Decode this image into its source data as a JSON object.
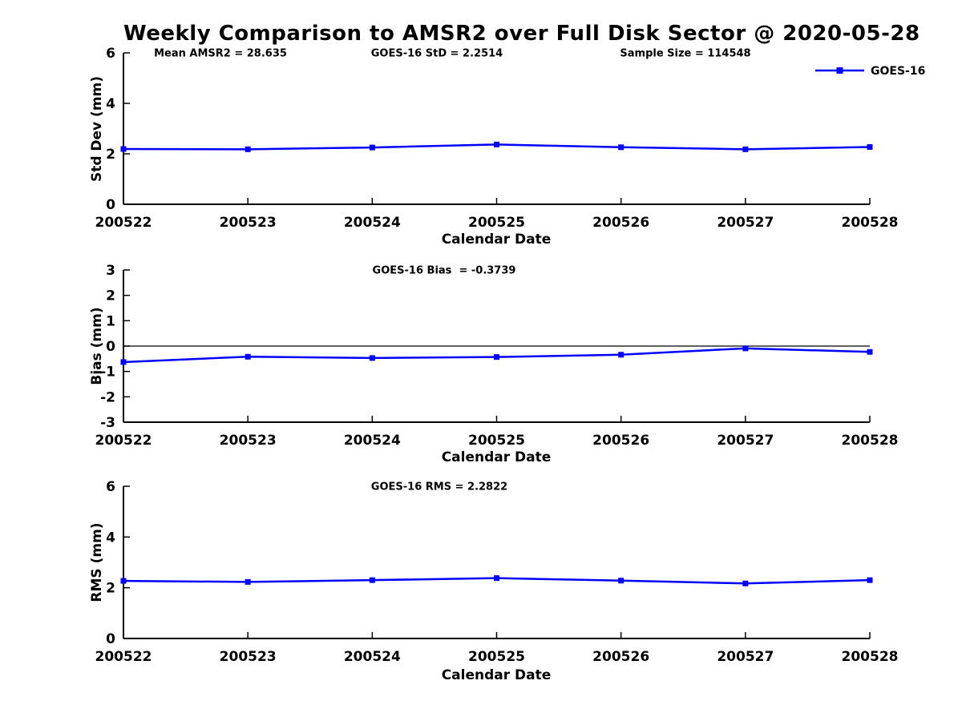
{
  "figure": {
    "title": "Weekly Comparison to AMSR2 over Full Disk Sector @ 2020-05-28"
  },
  "legend": {
    "label": "GOES-16"
  },
  "colors": {
    "series": "#0000FF",
    "axis": "#000000",
    "zero_line": "#000000",
    "background": "#FFFFFF",
    "text": "#000000"
  },
  "chart_data": [
    {
      "type": "line",
      "ylabel": "Std Dev (mm)",
      "xlabel": "Calendar Date",
      "categories": [
        "200522",
        "200523",
        "200524",
        "200525",
        "200526",
        "200527",
        "200528"
      ],
      "ylim": [
        0,
        6
      ],
      "yticks": [
        0,
        2,
        4,
        6
      ],
      "grid": false,
      "legend_position": "top-right",
      "series": [
        {
          "name": "GOES-16",
          "values": [
            2.19,
            2.18,
            2.25,
            2.37,
            2.26,
            2.18,
            2.27
          ]
        }
      ],
      "annotations": [
        {
          "text": "Mean AMSR2 = 28.635"
        },
        {
          "text": "GOES-16 StD = 2.2514"
        },
        {
          "text": "Sample Size = 114548"
        }
      ]
    },
    {
      "type": "line",
      "ylabel": "Bias (mm)",
      "xlabel": "Calendar Date",
      "categories": [
        "200522",
        "200523",
        "200524",
        "200525",
        "200526",
        "200527",
        "200528"
      ],
      "ylim": [
        -3,
        3
      ],
      "yticks": [
        -3,
        -2,
        -1,
        0,
        1,
        2,
        3
      ],
      "grid": false,
      "zero_line": true,
      "series": [
        {
          "name": "GOES-16",
          "values": [
            -0.63,
            -0.42,
            -0.47,
            -0.43,
            -0.34,
            -0.09,
            -0.23
          ]
        }
      ],
      "annotations": [
        {
          "text": "GOES-16 Bias  = -0.3739"
        }
      ]
    },
    {
      "type": "line",
      "ylabel": "RMS (mm)",
      "xlabel": "Calendar Date",
      "categories": [
        "200522",
        "200523",
        "200524",
        "200525",
        "200526",
        "200527",
        "200528"
      ],
      "ylim": [
        0,
        6
      ],
      "yticks": [
        0,
        2,
        4,
        6
      ],
      "grid": false,
      "series": [
        {
          "name": "GOES-16",
          "values": [
            2.27,
            2.23,
            2.3,
            2.38,
            2.28,
            2.17,
            2.3
          ]
        }
      ],
      "annotations": [
        {
          "text": "GOES-16 RMS = 2.2822"
        }
      ]
    }
  ]
}
